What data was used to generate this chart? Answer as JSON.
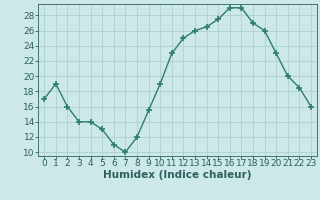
{
  "x": [
    0,
    1,
    2,
    3,
    4,
    5,
    6,
    7,
    8,
    9,
    10,
    11,
    12,
    13,
    14,
    15,
    16,
    17,
    18,
    19,
    20,
    21,
    22,
    23
  ],
  "y": [
    17,
    19,
    16,
    14,
    14,
    13,
    11,
    10,
    12,
    15.5,
    19,
    23,
    25,
    26,
    26.5,
    27.5,
    29,
    29,
    27,
    26,
    23,
    20,
    18.5,
    16
  ],
  "line_color": "#2e7d6e",
  "marker": "+",
  "marker_size": 5,
  "bg_color": "#cce8e8",
  "grid_color": "#b0d0d0",
  "xlabel": "Humidex (Indice chaleur)",
  "xlim": [
    -0.5,
    23.5
  ],
  "ylim": [
    9.5,
    29.5
  ],
  "yticks": [
    10,
    12,
    14,
    16,
    18,
    20,
    22,
    24,
    26,
    28
  ],
  "xticks": [
    0,
    1,
    2,
    3,
    4,
    5,
    6,
    7,
    8,
    9,
    10,
    11,
    12,
    13,
    14,
    15,
    16,
    17,
    18,
    19,
    20,
    21,
    22,
    23
  ],
  "font_color": "#2e6060",
  "xlabel_fontsize": 7.5,
  "tick_fontsize": 6.5,
  "linewidth": 1.0,
  "marker_edge_width": 1.2
}
